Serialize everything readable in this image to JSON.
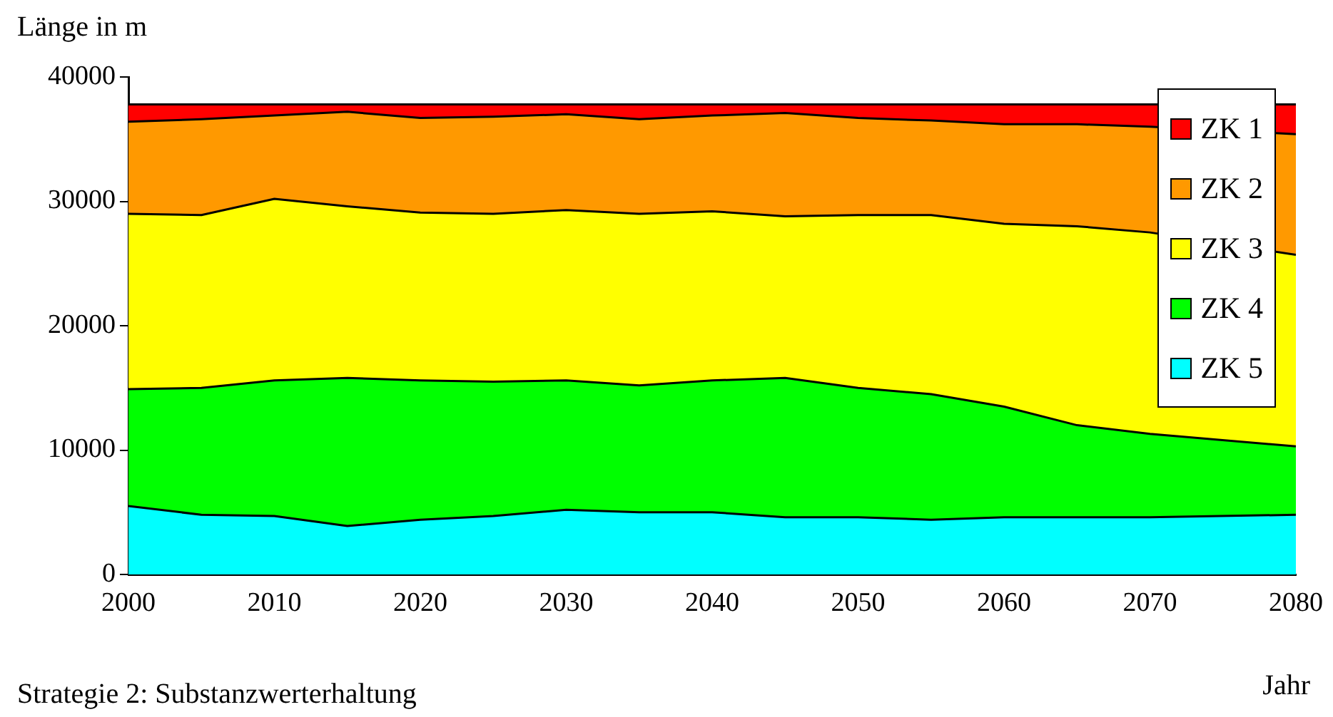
{
  "chart_data": {
    "type": "area",
    "stacked": true,
    "ylabel": "Länge in m",
    "xlabel": "Jahr",
    "annotations": [
      "Strategie 2: Substanzwerterhaltung"
    ],
    "x": [
      2000,
      2005,
      2010,
      2015,
      2020,
      2025,
      2030,
      2035,
      2040,
      2045,
      2050,
      2055,
      2060,
      2065,
      2070,
      2080
    ],
    "xlim": [
      2000,
      2080
    ],
    "xticks": [
      2000,
      2010,
      2020,
      2030,
      2040,
      2050,
      2060,
      2070,
      2080
    ],
    "ylim": [
      0,
      40000
    ],
    "yticks": [
      0,
      10000,
      20000,
      30000,
      40000
    ],
    "grid": false,
    "legend": "top right",
    "series": [
      {
        "name": "ZK 5",
        "color": "#00ffff",
        "values": [
          5500,
          4800,
          4700,
          3900,
          4400,
          4700,
          5200,
          5000,
          5000,
          4600,
          4600,
          4400,
          4600,
          4600,
          4600,
          4800
        ]
      },
      {
        "name": "ZK 4",
        "color": "#00ff00",
        "values": [
          9400,
          10200,
          10900,
          11900,
          11200,
          10800,
          10400,
          10200,
          10600,
          11200,
          10400,
          10100,
          8900,
          7400,
          6700,
          5500
        ]
      },
      {
        "name": "ZK 3",
        "color": "#ffff00",
        "values": [
          14100,
          13900,
          14600,
          13800,
          13500,
          13500,
          13700,
          13800,
          13600,
          13000,
          13900,
          14400,
          14700,
          16000,
          16200,
          15400
        ]
      },
      {
        "name": "ZK 2",
        "color": "#ff9900",
        "values": [
          7400,
          7700,
          6700,
          7600,
          7600,
          7800,
          7700,
          7600,
          7700,
          8300,
          7800,
          7600,
          8000,
          8200,
          8500,
          9700
        ]
      },
      {
        "name": "ZK 1",
        "color": "#ff0000",
        "values": [
          1400,
          1200,
          900,
          600,
          1100,
          1000,
          800,
          1200,
          900,
          700,
          1100,
          1300,
          1600,
          1600,
          1800,
          2400
        ]
      }
    ]
  }
}
